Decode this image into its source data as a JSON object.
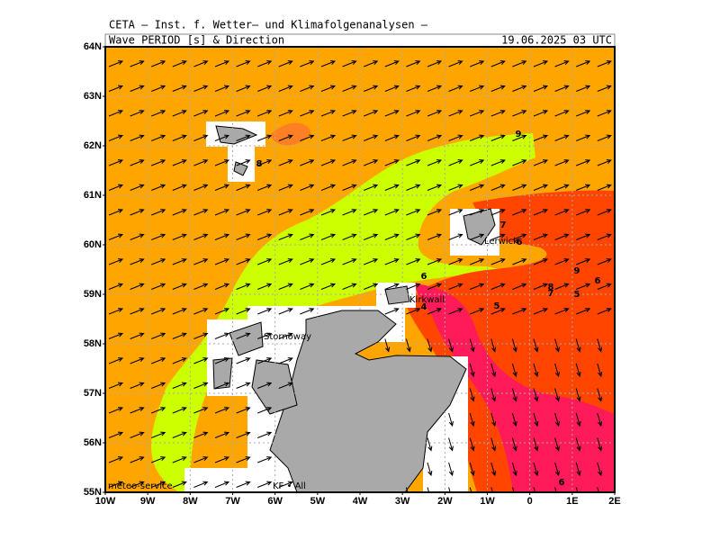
{
  "header": {
    "institute": "CETA — Inst. f. Wetter— und Klimafolgenanalysen —",
    "title": "Wave_PERIOD_[s]_&_Direction",
    "valid_time": "19.06.2025 03 UTC"
  },
  "axes": {
    "lat_labels": [
      "64N",
      "63N",
      "62N",
      "61N",
      "60N",
      "59N",
      "58N",
      "57N",
      "56N",
      "55N"
    ],
    "lon_labels": [
      "10W",
      "9W",
      "8W",
      "7W",
      "6W",
      "5W",
      "4W",
      "3W",
      "2W",
      "1W",
      "0",
      "1E",
      "2E"
    ]
  },
  "contour_labels": [
    "9",
    "8",
    "7",
    "6",
    "9",
    "6",
    "8",
    "7",
    "5",
    "6",
    "4",
    "5",
    "6"
  ],
  "places": [
    "Lerwick",
    "Kirkwall",
    "Stornoway"
  ],
  "footer": {
    "source": "meteo-service",
    "mark": "KF • All"
  }
}
